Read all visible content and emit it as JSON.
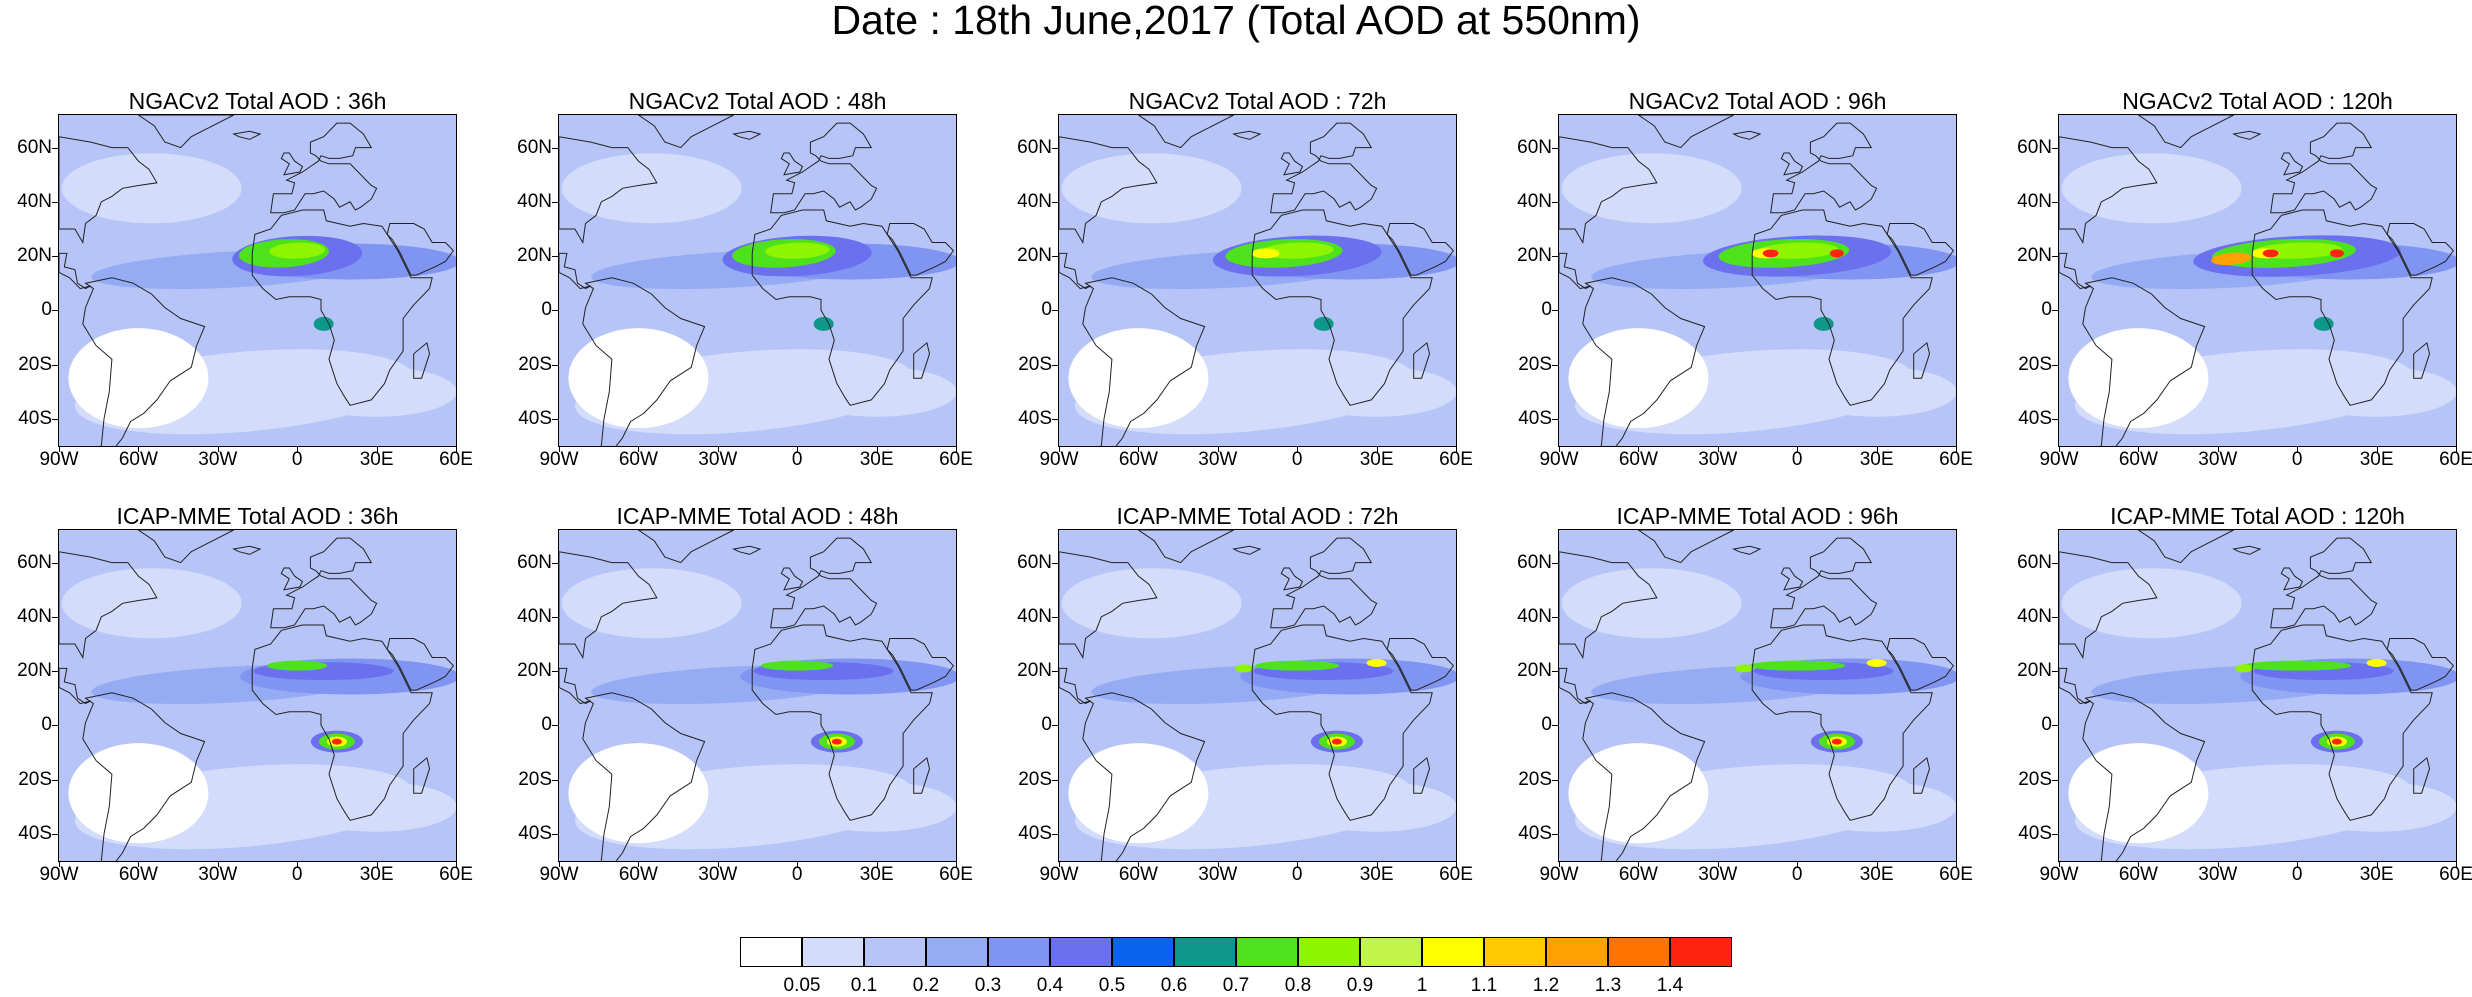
{
  "title": "Date : 18th June,2017 (Total AOD at 550nm)",
  "latitude_ticks": [
    "60N",
    "40N",
    "20N",
    "0",
    "20S",
    "40S"
  ],
  "longitude_ticks": [
    "90W",
    "60W",
    "30W",
    "0",
    "30E",
    "60E"
  ],
  "rows": [
    {
      "model": "NGACv2",
      "panels": [
        {
          "title": "NGACv2 Total AOD : 36h",
          "forecast_hour": 36
        },
        {
          "title": "NGACv2 Total AOD : 48h",
          "forecast_hour": 48
        },
        {
          "title": "NGACv2 Total AOD : 72h",
          "forecast_hour": 72
        },
        {
          "title": "NGACv2 Total AOD : 96h",
          "forecast_hour": 96
        },
        {
          "title": "NGACv2 Total AOD : 120h",
          "forecast_hour": 120
        }
      ]
    },
    {
      "model": "ICAP-MME",
      "panels": [
        {
          "title": "ICAP-MME Total AOD : 36h",
          "forecast_hour": 36
        },
        {
          "title": "ICAP-MME Total AOD : 48h",
          "forecast_hour": 48
        },
        {
          "title": "ICAP-MME Total AOD : 72h",
          "forecast_hour": 72
        },
        {
          "title": "ICAP-MME Total AOD : 96h",
          "forecast_hour": 96
        },
        {
          "title": "ICAP-MME Total AOD : 120h",
          "forecast_hour": 120
        }
      ]
    }
  ],
  "colorbar": {
    "colors": [
      "#ffffff",
      "#d4dcfb",
      "#b6c4f7",
      "#95acf5",
      "#8095f2",
      "#6b70ee",
      "#0a63ec",
      "#0e988b",
      "#4ee21c",
      "#8ff400",
      "#c1f54a",
      "#ffff00",
      "#ffc800",
      "#ffa100",
      "#ff7400",
      "#ff2410"
    ],
    "labels": [
      "0.05",
      "0.1",
      "0.2",
      "0.3",
      "0.4",
      "0.5",
      "0.6",
      "0.7",
      "0.8",
      "0.9",
      "1",
      "1.1",
      "1.2",
      "1.3",
      "1.4"
    ]
  }
}
